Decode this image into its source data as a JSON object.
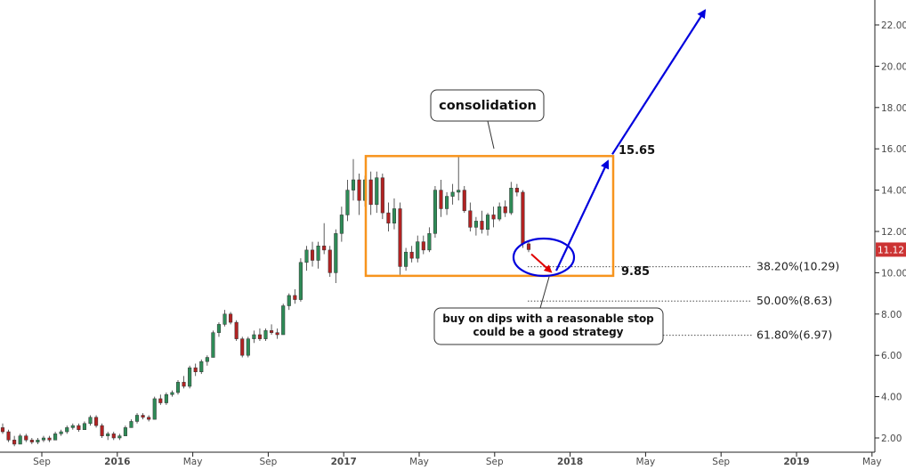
{
  "chart_data": {
    "type": "candlestick",
    "x_ticks": [
      "Sep",
      "2016",
      "May",
      "Sep",
      "2017",
      "May",
      "Sep",
      "2018",
      "May",
      "Sep",
      "2019",
      "May"
    ],
    "x_ticks_bold": [
      "2016",
      "2017",
      "2018",
      "2019"
    ],
    "y_ticks": [
      "2.00",
      "4.00",
      "6.00",
      "8.00",
      "10.00",
      "12.00",
      "14.00",
      "16.00",
      "18.00",
      "20.00",
      "22.00"
    ],
    "ylim": [
      1.8,
      22.7
    ],
    "last_price_label": "11.12",
    "colors": {
      "up": "#2e8b57",
      "down": "#b22222",
      "consolidation_box": "#f7941d",
      "projection": "#0000dd",
      "dip_arrow": "#e00000",
      "price_tag": "#cc3333"
    },
    "ohlc_approx": [
      {
        "o": 2.5,
        "h": 2.7,
        "l": 2.2,
        "c": 2.3
      },
      {
        "o": 2.3,
        "h": 2.4,
        "l": 1.8,
        "c": 1.9
      },
      {
        "o": 1.9,
        "h": 2.1,
        "l": 1.6,
        "c": 1.7
      },
      {
        "o": 1.7,
        "h": 2.2,
        "l": 1.7,
        "c": 2.1
      },
      {
        "o": 2.1,
        "h": 2.2,
        "l": 1.8,
        "c": 1.9
      },
      {
        "o": 1.9,
        "h": 2.0,
        "l": 1.7,
        "c": 1.8
      },
      {
        "o": 1.8,
        "h": 2.0,
        "l": 1.7,
        "c": 1.9
      },
      {
        "o": 1.9,
        "h": 2.1,
        "l": 1.8,
        "c": 2.0
      },
      {
        "o": 2.0,
        "h": 2.1,
        "l": 1.8,
        "c": 1.9
      },
      {
        "o": 1.9,
        "h": 2.3,
        "l": 1.9,
        "c": 2.2
      },
      {
        "o": 2.2,
        "h": 2.4,
        "l": 2.1,
        "c": 2.3
      },
      {
        "o": 2.3,
        "h": 2.6,
        "l": 2.2,
        "c": 2.5
      },
      {
        "o": 2.5,
        "h": 2.7,
        "l": 2.4,
        "c": 2.6
      },
      {
        "o": 2.6,
        "h": 2.7,
        "l": 2.3,
        "c": 2.4
      },
      {
        "o": 2.4,
        "h": 2.8,
        "l": 2.4,
        "c": 2.7
      },
      {
        "o": 2.7,
        "h": 3.1,
        "l": 2.6,
        "c": 3.0
      },
      {
        "o": 3.0,
        "h": 3.1,
        "l": 2.5,
        "c": 2.6
      },
      {
        "o": 2.6,
        "h": 2.7,
        "l": 2.0,
        "c": 2.1
      },
      {
        "o": 2.1,
        "h": 2.3,
        "l": 1.9,
        "c": 2.2
      },
      {
        "o": 2.2,
        "h": 2.3,
        "l": 1.9,
        "c": 2.0
      },
      {
        "o": 2.0,
        "h": 2.2,
        "l": 1.9,
        "c": 2.1
      },
      {
        "o": 2.1,
        "h": 2.6,
        "l": 2.1,
        "c": 2.5
      },
      {
        "o": 2.5,
        "h": 2.9,
        "l": 2.5,
        "c": 2.8
      },
      {
        "o": 2.8,
        "h": 3.2,
        "l": 2.7,
        "c": 3.1
      },
      {
        "o": 3.1,
        "h": 3.2,
        "l": 2.9,
        "c": 3.0
      },
      {
        "o": 3.0,
        "h": 3.1,
        "l": 2.8,
        "c": 2.9
      },
      {
        "o": 2.9,
        "h": 4.0,
        "l": 2.9,
        "c": 3.9
      },
      {
        "o": 3.9,
        "h": 4.1,
        "l": 3.6,
        "c": 3.7
      },
      {
        "o": 3.7,
        "h": 4.2,
        "l": 3.6,
        "c": 4.1
      },
      {
        "o": 4.1,
        "h": 4.3,
        "l": 4.0,
        "c": 4.2
      },
      {
        "o": 4.2,
        "h": 4.8,
        "l": 4.1,
        "c": 4.7
      },
      {
        "o": 4.7,
        "h": 5.0,
        "l": 4.4,
        "c": 4.5
      },
      {
        "o": 4.5,
        "h": 5.5,
        "l": 4.4,
        "c": 5.4
      },
      {
        "o": 5.4,
        "h": 5.6,
        "l": 5.0,
        "c": 5.2
      },
      {
        "o": 5.2,
        "h": 5.8,
        "l": 5.1,
        "c": 5.7
      },
      {
        "o": 5.7,
        "h": 6.0,
        "l": 5.5,
        "c": 5.9
      },
      {
        "o": 5.9,
        "h": 7.2,
        "l": 5.9,
        "c": 7.1
      },
      {
        "o": 7.1,
        "h": 7.6,
        "l": 6.9,
        "c": 7.5
      },
      {
        "o": 7.5,
        "h": 8.2,
        "l": 7.4,
        "c": 8.0
      },
      {
        "o": 8.0,
        "h": 8.1,
        "l": 7.5,
        "c": 7.6
      },
      {
        "o": 7.6,
        "h": 7.7,
        "l": 6.7,
        "c": 6.8
      },
      {
        "o": 6.8,
        "h": 6.9,
        "l": 5.9,
        "c": 6.0
      },
      {
        "o": 6.0,
        "h": 6.9,
        "l": 5.9,
        "c": 6.8
      },
      {
        "o": 6.8,
        "h": 7.2,
        "l": 6.6,
        "c": 7.0
      },
      {
        "o": 7.0,
        "h": 7.3,
        "l": 6.7,
        "c": 6.8
      },
      {
        "o": 6.8,
        "h": 7.3,
        "l": 6.7,
        "c": 7.2
      },
      {
        "o": 7.2,
        "h": 7.5,
        "l": 7.0,
        "c": 7.1
      },
      {
        "o": 7.1,
        "h": 7.3,
        "l": 6.8,
        "c": 7.0
      },
      {
        "o": 7.0,
        "h": 8.5,
        "l": 7.0,
        "c": 8.4
      },
      {
        "o": 8.4,
        "h": 9.0,
        "l": 8.2,
        "c": 8.9
      },
      {
        "o": 8.9,
        "h": 9.2,
        "l": 8.5,
        "c": 8.7
      },
      {
        "o": 8.7,
        "h": 10.7,
        "l": 8.6,
        "c": 10.5
      },
      {
        "o": 10.5,
        "h": 11.3,
        "l": 10.1,
        "c": 11.1
      },
      {
        "o": 11.1,
        "h": 11.5,
        "l": 10.3,
        "c": 10.6
      },
      {
        "o": 10.6,
        "h": 11.5,
        "l": 10.2,
        "c": 11.3
      },
      {
        "o": 11.3,
        "h": 12.4,
        "l": 10.9,
        "c": 11.1
      },
      {
        "o": 11.1,
        "h": 11.3,
        "l": 9.8,
        "c": 10.0
      },
      {
        "o": 10.0,
        "h": 12.1,
        "l": 9.5,
        "c": 11.9
      },
      {
        "o": 11.9,
        "h": 13.2,
        "l": 11.5,
        "c": 12.8
      },
      {
        "o": 12.8,
        "h": 14.5,
        "l": 12.5,
        "c": 14.0
      },
      {
        "o": 14.0,
        "h": 15.5,
        "l": 13.5,
        "c": 14.5
      },
      {
        "o": 14.5,
        "h": 14.8,
        "l": 12.8,
        "c": 13.5
      },
      {
        "o": 13.5,
        "h": 14.7,
        "l": 13.2,
        "c": 14.5
      },
      {
        "o": 14.5,
        "h": 14.9,
        "l": 12.8,
        "c": 13.3
      },
      {
        "o": 13.3,
        "h": 14.9,
        "l": 12.9,
        "c": 14.6
      },
      {
        "o": 14.6,
        "h": 14.8,
        "l": 12.6,
        "c": 12.9
      },
      {
        "o": 12.9,
        "h": 13.4,
        "l": 12.0,
        "c": 12.4
      },
      {
        "o": 12.4,
        "h": 13.6,
        "l": 12.1,
        "c": 13.1
      },
      {
        "o": 13.1,
        "h": 13.4,
        "l": 9.9,
        "c": 10.3
      },
      {
        "o": 10.3,
        "h": 11.2,
        "l": 10.1,
        "c": 11.0
      },
      {
        "o": 11.0,
        "h": 11.3,
        "l": 10.5,
        "c": 10.7
      },
      {
        "o": 10.7,
        "h": 11.8,
        "l": 10.5,
        "c": 11.5
      },
      {
        "o": 11.5,
        "h": 11.8,
        "l": 10.9,
        "c": 11.1
      },
      {
        "o": 11.1,
        "h": 12.2,
        "l": 11.0,
        "c": 11.9
      },
      {
        "o": 11.9,
        "h": 14.2,
        "l": 11.7,
        "c": 14.0
      },
      {
        "o": 14.0,
        "h": 14.5,
        "l": 12.7,
        "c": 13.1
      },
      {
        "o": 13.1,
        "h": 13.9,
        "l": 12.8,
        "c": 13.7
      },
      {
        "o": 13.7,
        "h": 14.3,
        "l": 13.3,
        "c": 13.9
      },
      {
        "o": 13.9,
        "h": 15.6,
        "l": 13.5,
        "c": 14.0
      },
      {
        "o": 14.0,
        "h": 14.2,
        "l": 12.9,
        "c": 13.0
      },
      {
        "o": 13.0,
        "h": 13.4,
        "l": 12.0,
        "c": 12.2
      },
      {
        "o": 12.2,
        "h": 12.7,
        "l": 11.8,
        "c": 12.5
      },
      {
        "o": 12.5,
        "h": 13.0,
        "l": 11.9,
        "c": 12.1
      },
      {
        "o": 12.1,
        "h": 12.9,
        "l": 11.8,
        "c": 12.8
      },
      {
        "o": 12.8,
        "h": 13.2,
        "l": 12.2,
        "c": 12.6
      },
      {
        "o": 12.6,
        "h": 13.4,
        "l": 12.5,
        "c": 13.2
      },
      {
        "o": 13.2,
        "h": 13.5,
        "l": 12.7,
        "c": 12.9
      },
      {
        "o": 12.9,
        "h": 14.4,
        "l": 12.8,
        "c": 14.1
      },
      {
        "o": 14.1,
        "h": 14.3,
        "l": 13.7,
        "c": 13.9
      },
      {
        "o": 13.9,
        "h": 14.0,
        "l": 11.2,
        "c": 11.4
      },
      {
        "o": 11.4,
        "h": 11.5,
        "l": 11.0,
        "c": 11.12
      }
    ],
    "levels": {
      "consolidation_top": {
        "value": 15.65,
        "label": "15.65"
      },
      "consolidation_bottom": {
        "value": 9.85,
        "label": "9.85"
      }
    },
    "fibonacci": [
      {
        "label": "38.20%(10.29)",
        "value": 10.29
      },
      {
        "label": "50.00%(8.63)",
        "value": 8.63
      },
      {
        "label": "61.80%(6.97)",
        "value": 6.97
      }
    ],
    "projection_points": [
      {
        "value": 10.1
      },
      {
        "value": 15.4
      },
      {
        "value": 22.7
      }
    ],
    "annotations": {
      "consolidation_callout": "consolidation",
      "strategy_callout_line1": "buy on dips with a reasonable stop",
      "strategy_callout_line2": "could be a good strategy"
    }
  }
}
